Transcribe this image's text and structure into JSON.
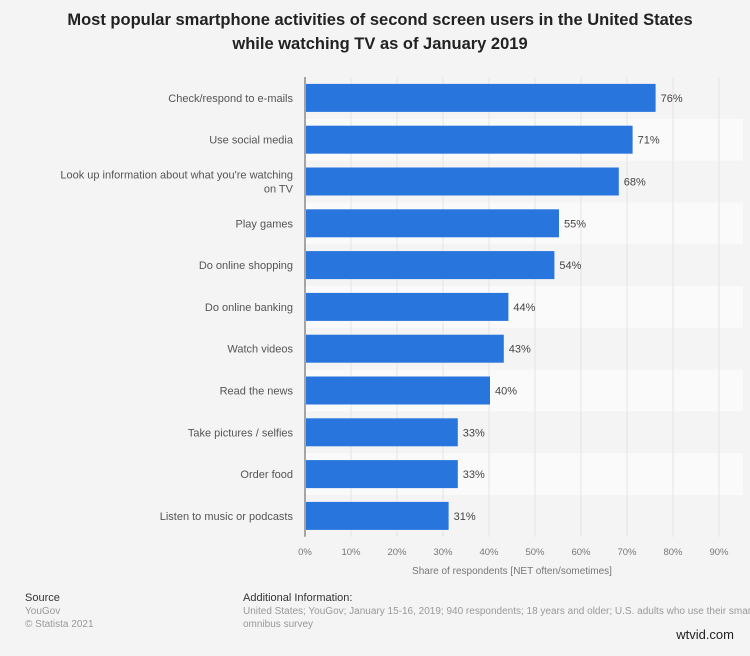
{
  "chart_data": {
    "type": "bar",
    "orientation": "horizontal",
    "title": "Most popular smartphone activities of second screen users in the United States while watching TV as of January 2019",
    "categories": [
      "Check/respond to e-mails",
      "Use social media",
      "Look up information about what you're watching on TV",
      "Play games",
      "Do online shopping",
      "Do online banking",
      "Watch videos",
      "Read the news",
      "Take pictures / selfies",
      "Order food",
      "Listen to music or podcasts"
    ],
    "values": [
      76,
      71,
      68,
      55,
      54,
      44,
      43,
      40,
      33,
      33,
      31
    ],
    "xlabel": "Share of respondents [NET often/sometimes]",
    "xlim": [
      0,
      90
    ],
    "ticks": [
      "0%",
      "10%",
      "20%",
      "30%",
      "40%",
      "50%",
      "60%",
      "70%",
      "80%",
      "90%"
    ],
    "bar_color": "#2876dd",
    "grid": true
  },
  "footer": {
    "source_label": "Source",
    "source": "YouGov",
    "copyright": "© Statista 2021",
    "info_label": "Additional Information:",
    "info_line1": "United States; YouGov; January 15-16, 2019; 940 respondents; 18 years and older; U.S. adults who use their smartphone",
    "info_line2": "omnibus survey"
  },
  "watermark": "wtvid.com"
}
